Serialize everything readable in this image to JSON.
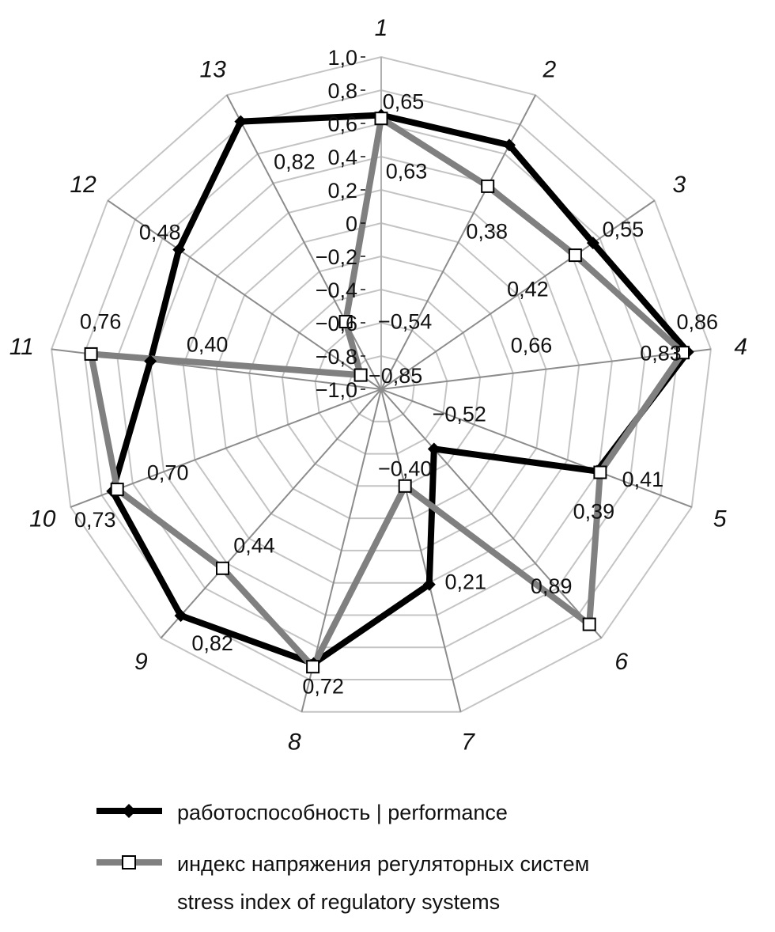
{
  "chart_data": {
    "type": "radar",
    "axes": [
      "1",
      "2",
      "3",
      "4",
      "5",
      "6",
      "7",
      "8",
      "9",
      "10",
      "11",
      "12",
      "13"
    ],
    "ticks": [
      "1,0",
      "0,8",
      "0,6",
      "0,4",
      "0,2",
      "0",
      "−0,2",
      "−0,4",
      "−0,6",
      "−0,8",
      "−1,0"
    ],
    "range": [
      -1.0,
      1.0
    ],
    "grid": true,
    "legend_position": "bottom",
    "series": [
      {
        "name": "работоспособность | performance",
        "color": "#000000",
        "marker": "diamond",
        "values": [
          0.65,
          0.66,
          0.55,
          0.86,
          0.39,
          -0.52,
          0.21,
          0.7,
          0.82,
          0.73,
          0.4,
          0.48,
          0.82
        ],
        "labels": [
          "0,65",
          "0,66",
          "0,55",
          "0,86",
          "0,39",
          "−0,52",
          "0,21",
          "",
          "0,82",
          "0,73",
          "0,40",
          "0,48",
          "0,82"
        ]
      },
      {
        "name": "индекс напряжения регуляторных систем",
        "name_line2": "stress index of regulatory systems",
        "color": "#808080",
        "marker": "square",
        "values": [
          0.63,
          0.38,
          0.42,
          0.83,
          0.41,
          0.89,
          -0.4,
          0.72,
          0.44,
          0.7,
          0.76,
          -0.85,
          -0.54
        ],
        "labels": [
          "0,63",
          "0,38",
          "0,42",
          "0,83",
          "0,41",
          "0,89",
          "−0,40",
          "0,72",
          "0,44",
          "0,70",
          "0,76",
          "−0,85",
          "−0,54"
        ]
      }
    ]
  }
}
